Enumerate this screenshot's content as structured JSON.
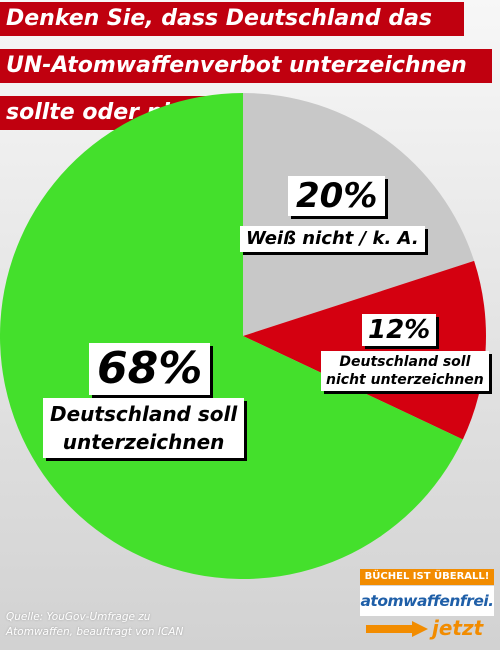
{
  "title": {
    "line1": "Denken Sie, dass Deutschland das",
    "line2": "UN-Atomwaffenverbot unterzeichnen",
    "line3": "sollte oder nicht?"
  },
  "chart_data": {
    "type": "pie",
    "title": "Denken Sie, dass Deutschland das UN-Atomwaffenverbot unterzeichnen sollte oder nicht?",
    "slices": [
      {
        "label": "Weiß nicht / k. A.",
        "value": 20,
        "display": "20%",
        "color": "#c8c8c8"
      },
      {
        "label": "Deutschland soll nicht unterzeichnen",
        "value": 12,
        "display": "12%",
        "color": "#d40010"
      },
      {
        "label": "Deutschland soll unterzeichnen",
        "value": 68,
        "display": "68%",
        "color": "#44e02c"
      }
    ],
    "labels": {
      "unsure_pct": "20%",
      "unsure_text": "Weiß nicht / k. A.",
      "no_pct": "12%",
      "no_text_line1": "Deutschland soll",
      "no_text_line2": "nicht unterzeichnen",
      "yes_pct": "68%",
      "yes_text_line1": "Deutschland soll",
      "yes_text_line2": "unterzeichnen"
    }
  },
  "source": {
    "line1": "Quelle: YouGov-Umfrage zu",
    "line2": "Atomwaffen, beauftragt von ICAN"
  },
  "logo": {
    "top": "BÜCHEL IST ÜBERALL!",
    "middle": "atomwaffenfrei.",
    "bottom": "jetzt",
    "orange": "#f28c00",
    "blue": "#1f5fa8"
  },
  "colors": {
    "title_bg": "#c0000f"
  }
}
